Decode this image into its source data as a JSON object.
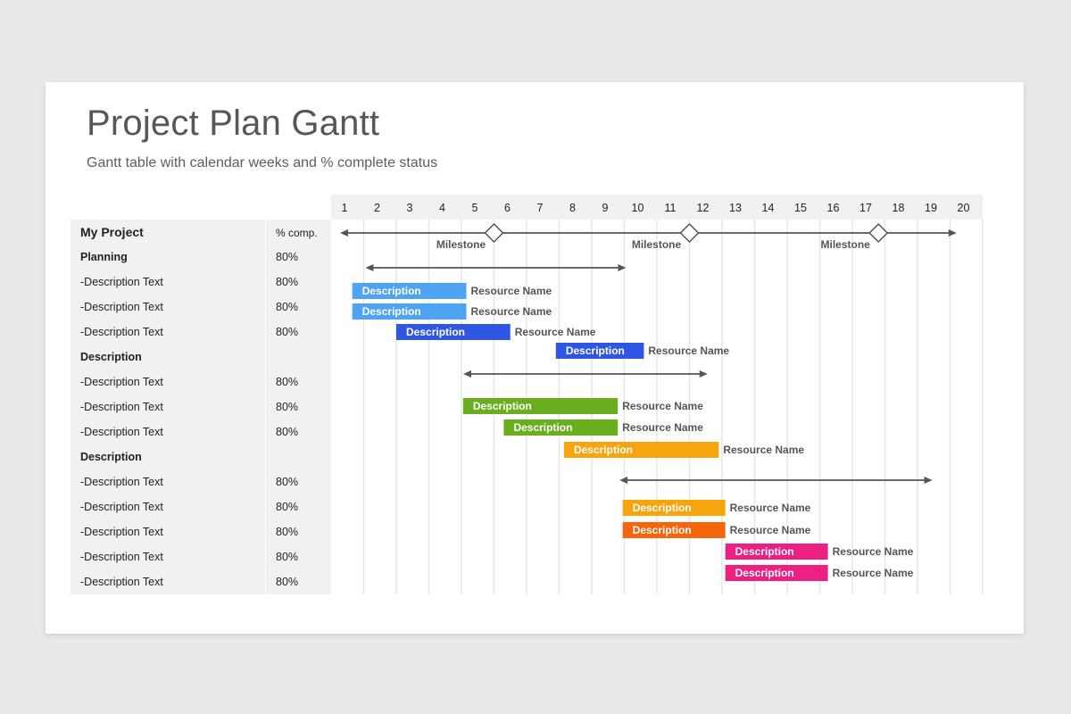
{
  "title": "Project Plan Gantt",
  "subtitle": "Gantt table with calendar weeks and % complete status",
  "colors": {
    "light_blue": "#4fa3f3",
    "blue": "#2f56e3",
    "green": "#6aad1e",
    "amber": "#f6a50f",
    "orange": "#f4650c",
    "pink": "#ec1f83",
    "label_bg": "#f1f1f1",
    "grid": "#e6e6e6",
    "arrow": "#555555"
  },
  "chart_data": {
    "type": "gantt",
    "weeks": [
      "1",
      "2",
      "3",
      "4",
      "5",
      "6",
      "7",
      "8",
      "9",
      "10",
      "11",
      "12",
      "13",
      "14",
      "15",
      "16",
      "17",
      "18",
      "19",
      "20"
    ],
    "table": {
      "header": {
        "name": "My Project",
        "pct": "% comp."
      },
      "rows": [
        {
          "name": "Planning",
          "pct": "80%",
          "bold": true
        },
        {
          "name": "-Description Text",
          "pct": "80%",
          "bold": false
        },
        {
          "name": "-Description Text",
          "pct": "80%",
          "bold": false
        },
        {
          "name": "-Description Text",
          "pct": "80%",
          "bold": false
        },
        {
          "name": "Description",
          "pct": "",
          "bold": true
        },
        {
          "name": "-Description Text",
          "pct": "80%",
          "bold": false
        },
        {
          "name": "-Description Text",
          "pct": "80%",
          "bold": false
        },
        {
          "name": "-Description Text",
          "pct": "80%",
          "bold": false
        },
        {
          "name": "Description",
          "pct": "",
          "bold": true
        },
        {
          "name": "-Description Text",
          "pct": "80%",
          "bold": false
        },
        {
          "name": "-Description Text",
          "pct": "80%",
          "bold": false
        },
        {
          "name": "-Description Text",
          "pct": "80%",
          "bold": false
        },
        {
          "name": "-Description Text",
          "pct": "80%",
          "bold": false
        },
        {
          "name": "-Description Text",
          "pct": "80%",
          "bold": false
        }
      ]
    },
    "timeline": {
      "start": 1,
      "end": 20.2
    },
    "milestones": [
      {
        "week": 6,
        "label": "Milestone"
      },
      {
        "week": 12,
        "label": "Milestone"
      },
      {
        "week": 17.8,
        "label": "Milestone"
      }
    ],
    "phase_spans": [
      {
        "start": 2,
        "end": 10
      },
      {
        "start": 5,
        "end": 12.5
      },
      {
        "start": 9.8,
        "end": 19.4
      }
    ],
    "tasks": [
      {
        "label": "Description",
        "resource": "Resource Name",
        "start": 1.65,
        "end": 5.15,
        "color": "light_blue"
      },
      {
        "label": "Description",
        "resource": "Resource Name",
        "start": 1.65,
        "end": 5.15,
        "color": "light_blue"
      },
      {
        "label": "Description",
        "resource": "Resource Name",
        "start": 3.0,
        "end": 6.5,
        "color": "blue"
      },
      {
        "label": "Description",
        "resource": "Resource Name",
        "start": 7.9,
        "end": 10.6,
        "color": "blue"
      },
      {
        "label": "Description",
        "resource": "Resource Name",
        "start": 5.05,
        "end": 9.8,
        "color": "green"
      },
      {
        "label": "Description",
        "resource": "Resource Name",
        "start": 6.3,
        "end": 9.8,
        "color": "green"
      },
      {
        "label": "Description",
        "resource": "Resource Name",
        "start": 8.15,
        "end": 12.9,
        "color": "amber"
      },
      {
        "label": "Description",
        "resource": "Resource Name",
        "start": 9.95,
        "end": 13.1,
        "color": "amber"
      },
      {
        "label": "Description",
        "resource": "Resource Name",
        "start": 9.95,
        "end": 13.1,
        "color": "orange"
      },
      {
        "label": "Description",
        "resource": "Resource Name",
        "start": 13.1,
        "end": 16.25,
        "color": "pink"
      },
      {
        "label": "Description",
        "resource": "Resource Name",
        "start": 13.1,
        "end": 16.25,
        "color": "pink"
      }
    ]
  }
}
